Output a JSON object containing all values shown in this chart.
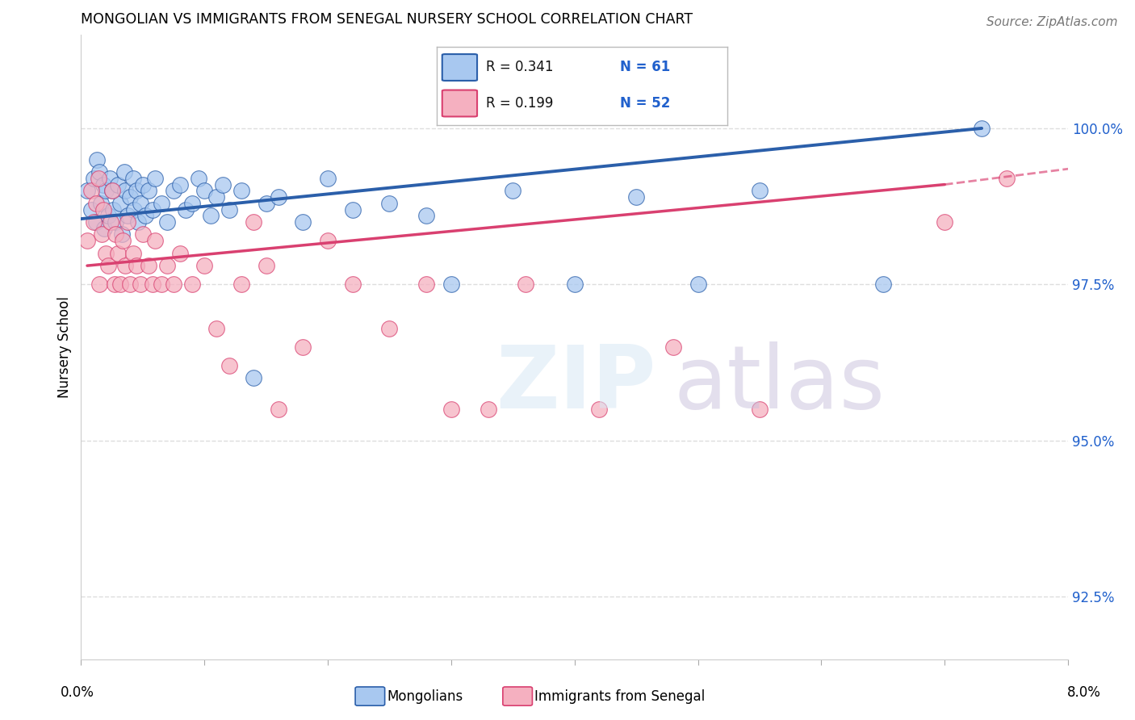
{
  "title": "MONGOLIAN VS IMMIGRANTS FROM SENEGAL NURSERY SCHOOL CORRELATION CHART",
  "source": "Source: ZipAtlas.com",
  "ylabel": "Nursery School",
  "xlim": [
    0.0,
    8.0
  ],
  "ylim": [
    91.5,
    101.5
  ],
  "yticks": [
    92.5,
    95.0,
    97.5,
    100.0
  ],
  "ytick_labels": [
    "92.5%",
    "95.0%",
    "97.5%",
    "100.0%"
  ],
  "mongolian_color": "#A8C8F0",
  "senegal_color": "#F5B0C0",
  "mongolian_line_color": "#2B5FAA",
  "senegal_line_color": "#D94070",
  "background_color": "#FFFFFF",
  "grid_color": "#DDDDDD",
  "mongolian_x": [
    0.05,
    0.08,
    0.1,
    0.12,
    0.13,
    0.15,
    0.16,
    0.18,
    0.19,
    0.2,
    0.22,
    0.23,
    0.25,
    0.26,
    0.28,
    0.3,
    0.32,
    0.33,
    0.35,
    0.36,
    0.38,
    0.4,
    0.42,
    0.43,
    0.45,
    0.46,
    0.48,
    0.5,
    0.52,
    0.55,
    0.58,
    0.6,
    0.65,
    0.7,
    0.75,
    0.8,
    0.85,
    0.9,
    0.95,
    1.0,
    1.05,
    1.1,
    1.15,
    1.2,
    1.3,
    1.4,
    1.5,
    1.6,
    1.8,
    2.0,
    2.2,
    2.5,
    2.8,
    3.0,
    3.5,
    4.0,
    4.5,
    5.0,
    5.5,
    6.5,
    7.3
  ],
  "mongolian_y": [
    99.0,
    98.7,
    99.2,
    98.5,
    99.5,
    99.3,
    98.8,
    99.1,
    98.4,
    99.0,
    98.6,
    99.2,
    99.0,
    98.7,
    98.5,
    99.1,
    98.8,
    98.3,
    99.3,
    99.0,
    98.6,
    98.9,
    99.2,
    98.7,
    99.0,
    98.5,
    98.8,
    99.1,
    98.6,
    99.0,
    98.7,
    99.2,
    98.8,
    98.5,
    99.0,
    99.1,
    98.7,
    98.8,
    99.2,
    99.0,
    98.6,
    98.9,
    99.1,
    98.7,
    99.0,
    96.0,
    98.8,
    98.9,
    98.5,
    99.2,
    98.7,
    98.8,
    98.6,
    97.5,
    99.0,
    97.5,
    98.9,
    97.5,
    99.0,
    97.5,
    100.0
  ],
  "senegal_x": [
    0.05,
    0.08,
    0.1,
    0.12,
    0.14,
    0.15,
    0.17,
    0.18,
    0.2,
    0.22,
    0.24,
    0.25,
    0.27,
    0.28,
    0.3,
    0.32,
    0.34,
    0.36,
    0.38,
    0.4,
    0.42,
    0.45,
    0.48,
    0.5,
    0.55,
    0.58,
    0.6,
    0.65,
    0.7,
    0.75,
    0.8,
    0.9,
    1.0,
    1.1,
    1.2,
    1.3,
    1.4,
    1.5,
    1.6,
    1.8,
    2.0,
    2.2,
    2.5,
    2.8,
    3.0,
    3.3,
    3.6,
    4.2,
    4.8,
    5.5,
    7.0,
    7.5
  ],
  "senegal_y": [
    98.2,
    99.0,
    98.5,
    98.8,
    99.2,
    97.5,
    98.3,
    98.7,
    98.0,
    97.8,
    98.5,
    99.0,
    97.5,
    98.3,
    98.0,
    97.5,
    98.2,
    97.8,
    98.5,
    97.5,
    98.0,
    97.8,
    97.5,
    98.3,
    97.8,
    97.5,
    98.2,
    97.5,
    97.8,
    97.5,
    98.0,
    97.5,
    97.8,
    96.8,
    96.2,
    97.5,
    98.5,
    97.8,
    95.5,
    96.5,
    98.2,
    97.5,
    96.8,
    97.5,
    95.5,
    95.5,
    97.5,
    95.5,
    96.5,
    95.5,
    98.5,
    99.2
  ],
  "mon_reg_x0": 0.0,
  "mon_reg_y0": 98.55,
  "mon_reg_x1": 7.3,
  "mon_reg_y1": 100.0,
  "sen_reg_x0": 0.05,
  "sen_reg_y0": 97.8,
  "sen_reg_x1": 7.0,
  "sen_reg_y1": 99.1,
  "sen_dash_x0": 7.0,
  "sen_dash_y0": 99.1,
  "sen_dash_x1": 8.0,
  "sen_dash_y1": 99.35
}
